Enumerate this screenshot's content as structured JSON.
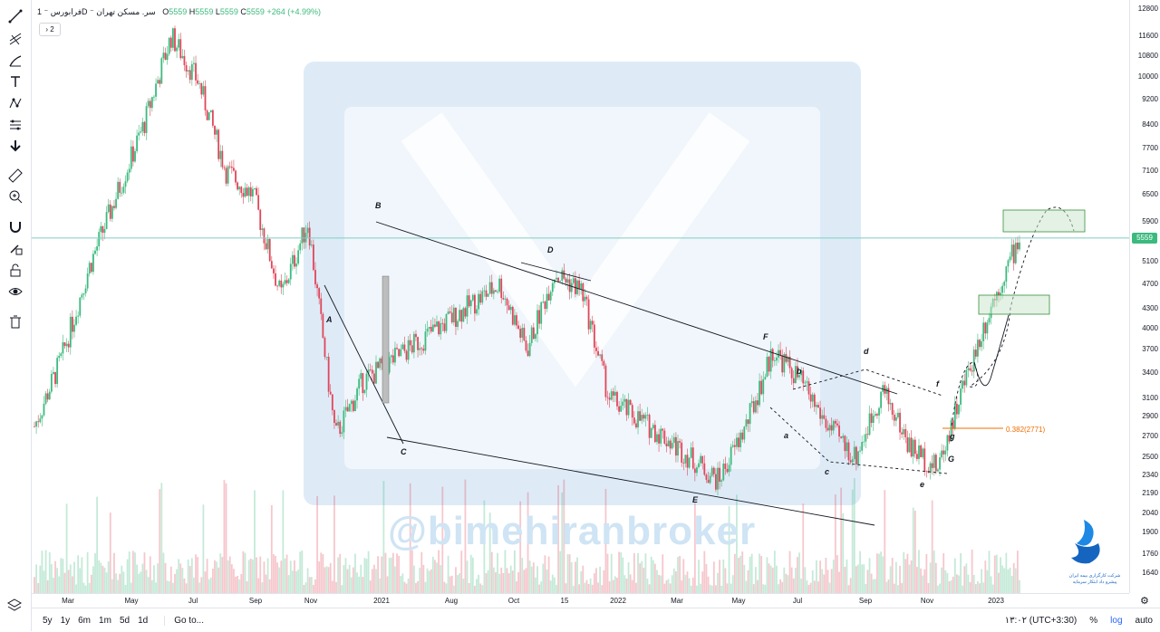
{
  "legend": {
    "symbol": "فرابورس ⁻ 1D ⁻ سر. مسکن تهران",
    "open_label": "O",
    "open": "5559",
    "high_label": "H",
    "high": "5559",
    "low_label": "L",
    "low": "5559",
    "close_label": "C",
    "close": "5559",
    "change": "+264 (+4.99%)",
    "collapse": "› 2"
  },
  "toolbar": {
    "icons": [
      "trend-line-icon",
      "pitchfork-icon",
      "brush-icon",
      "text-icon",
      "pattern-icon",
      "measure-tool-icon",
      "arrow-down-icon",
      "ruler-icon",
      "zoom-in-icon",
      "magnet-icon",
      "lock-drawing-icon",
      "unlock-icon",
      "eye-icon",
      "trash-icon"
    ]
  },
  "price_tag": "5559",
  "bottom_bar": {
    "ranges": [
      "5y",
      "1y",
      "6m",
      "1m",
      "5d",
      "1d"
    ],
    "goto": "Go to...",
    "time": "۱۳:۰۲ (UTC+3:30)",
    "percent": "%",
    "log": "log",
    "auto": "auto"
  },
  "watermark": "@bimehiranbroker",
  "logo_caption": "شرکت کارگزاری بیمه ایران",
  "logo_subcaption": "پیشرو داد ابتکار سرمایه",
  "fib_label": "0.382(2771)",
  "colors": {
    "up": "#3cba7e",
    "down": "#e0465a",
    "line": "#131722",
    "fib": "#ef6c00",
    "zone": "#c8e6c9",
    "hline": "#80cbc4"
  },
  "chart_data": {
    "type": "candlestick",
    "title": "",
    "xlabel": "",
    "ylabel": "",
    "y_scale": "log",
    "y_ticks": [
      12800,
      11600,
      10800,
      10000,
      9200,
      8400,
      7700,
      7100,
      6500,
      5900,
      5100,
      4700,
      4300,
      4000,
      3700,
      3400,
      3100,
      2900,
      2700,
      2500,
      2340,
      2190,
      2040,
      1900,
      1760,
      1640
    ],
    "x_ticks": [
      "Mar",
      "May",
      "Jul",
      "Sep",
      "Nov",
      "2021",
      "Aug",
      "Oct",
      "15",
      "2022",
      "Mar",
      "May",
      "Jul",
      "Sep",
      "Nov",
      "2023"
    ],
    "last_price": 5559,
    "series": [
      {
        "path": [
          [
            "Feb-2020",
            2800
          ],
          [
            "Mar-2020",
            3600
          ],
          [
            "Apr-2020",
            5000
          ],
          [
            "May-2020",
            6500
          ],
          [
            "Jun-2020",
            8400
          ],
          [
            "Jul-2020",
            11600
          ],
          [
            "Aug-2020",
            9800
          ],
          [
            "Sep-2020",
            7100
          ],
          [
            "Oct-2020",
            6500
          ],
          [
            "Nov-2020",
            4500
          ],
          [
            "Dec-2020",
            5900
          ],
          [
            "Jan-2021",
            2700
          ],
          [
            "Feb-2021",
            3300
          ],
          [
            "Jul-2021",
            4700
          ],
          [
            "Aug-2021",
            3700
          ],
          [
            "Sep-2021",
            4900
          ],
          [
            "Oct-2021",
            4600
          ],
          [
            "Nov-2021",
            3100
          ],
          [
            "Jan-2022",
            2700
          ],
          [
            "Mar-2022",
            2300
          ],
          [
            "Apr-2022",
            2800
          ],
          [
            "May-2022",
            3700
          ],
          [
            "Jun-2022",
            3300
          ],
          [
            "Jul-2022",
            2800
          ],
          [
            "Aug-2022",
            2500
          ],
          [
            "Sep-2022",
            3200
          ],
          [
            "Oct-2022",
            2600
          ],
          [
            "Nov-2022",
            2400
          ],
          [
            "Dec-2022",
            3300
          ],
          [
            "Jan-2023",
            4400
          ],
          [
            "Feb-2023",
            5559
          ]
        ]
      }
    ],
    "wave_labels": [
      {
        "text": "A",
        "price": 3900
      },
      {
        "text": "B",
        "price": 6200
      },
      {
        "text": "C",
        "price": 2500
      },
      {
        "text": "D",
        "price": 5400
      },
      {
        "text": "E",
        "price": 2120
      },
      {
        "text": "F",
        "price": 3900
      },
      {
        "text": "a",
        "price": 2750
      },
      {
        "text": "b",
        "price": 3450
      },
      {
        "text": "c",
        "price": 2380
      },
      {
        "text": "d",
        "price": 3750
      },
      {
        "text": "e",
        "price": 2280
      },
      {
        "text": "f",
        "price": 3200
      },
      {
        "text": "g",
        "price": 2730
      },
      {
        "text": "G",
        "price": 2450
      }
    ],
    "fibonacci": {
      "label": "0.382(2771)",
      "price": 2771
    },
    "target_zones": [
      {
        "low": 5650,
        "high": 6200
      },
      {
        "low": 4250,
        "high": 4550
      }
    ]
  }
}
